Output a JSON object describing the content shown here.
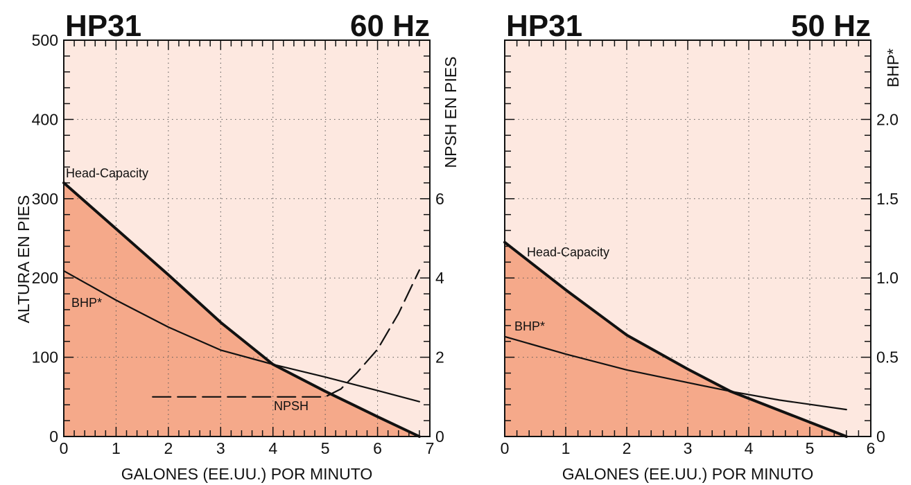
{
  "chart_data": [
    {
      "type": "line",
      "title_left": "HP31",
      "title_right": "60 Hz",
      "xlabel": "GALONES (EE.UU.) POR MINUTO",
      "ylabel": "ALTURA EN PIES",
      "ylabel_right": "NPSH EN PIES",
      "xlim": [
        0,
        7
      ],
      "ylim": [
        0,
        500
      ],
      "ylim_right": [
        0,
        10
      ],
      "x_ticks": [
        0,
        1,
        2,
        3,
        4,
        5,
        6,
        7
      ],
      "y_ticks": [
        0,
        100,
        200,
        300,
        400,
        500
      ],
      "y_ticks_right": [
        0,
        2,
        4,
        6
      ],
      "grid": true,
      "colors": {
        "fill_under": "#f5a98a",
        "background": "#fde8e0",
        "line": "#111111"
      },
      "series": [
        {
          "name": "Head-Capacity",
          "axis": "left",
          "style": "bold",
          "x": [
            0,
            1,
            2,
            3,
            4,
            5,
            6,
            6.8
          ],
          "y": [
            320,
            262,
            204,
            144,
            91,
            57,
            25,
            0
          ]
        },
        {
          "name": "BHP*",
          "axis": "left",
          "style": "solid",
          "x": [
            0,
            1,
            2,
            3,
            4,
            5,
            6,
            6.8
          ],
          "y": [
            209,
            172,
            138,
            109,
            91,
            75,
            58,
            44
          ]
        },
        {
          "name": "NPSH",
          "axis": "right",
          "style": "dashed",
          "x": [
            1.7,
            2.5,
            3.5,
            4.5,
            5.0,
            5.3,
            5.6,
            6.0,
            6.4,
            6.8
          ],
          "y": [
            1.0,
            1.0,
            1.0,
            1.0,
            1.0,
            1.2,
            1.6,
            2.2,
            3.1,
            4.2
          ]
        }
      ]
    },
    {
      "type": "line",
      "title_left": "HP31",
      "title_right": "50 Hz",
      "xlabel": "GALONES (EE.UU.) POR MINUTO",
      "ylabel_right": "BHP*",
      "xlim": [
        0,
        6
      ],
      "ylim": [
        0,
        500
      ],
      "ylim_right": [
        0,
        2.5
      ],
      "x_ticks": [
        0,
        1,
        2,
        3,
        4,
        5,
        6
      ],
      "y_ticks_right": [
        0,
        0.5,
        1.0,
        1.5,
        2.0
      ],
      "y_ticks_right_labels": [
        "0",
        "0.5",
        "1.0",
        "1.5",
        "2.0"
      ],
      "grid": true,
      "colors": {
        "fill_under": "#f5a98a",
        "background": "#fde8e0",
        "line": "#111111"
      },
      "series": [
        {
          "name": "Head-Capacity",
          "axis": "left",
          "style": "bold",
          "x": [
            0,
            1,
            2,
            3,
            3.7,
            4.5,
            5.6
          ],
          "y": [
            245,
            185,
            128,
            85,
            57,
            33,
            0
          ]
        },
        {
          "name": "BHP*",
          "axis": "right",
          "style": "solid",
          "x": [
            0,
            1,
            2,
            3,
            3.7,
            4.5,
            5.6
          ],
          "y": [
            0.63,
            0.52,
            0.42,
            0.34,
            0.285,
            0.23,
            0.17
          ]
        }
      ]
    }
  ]
}
